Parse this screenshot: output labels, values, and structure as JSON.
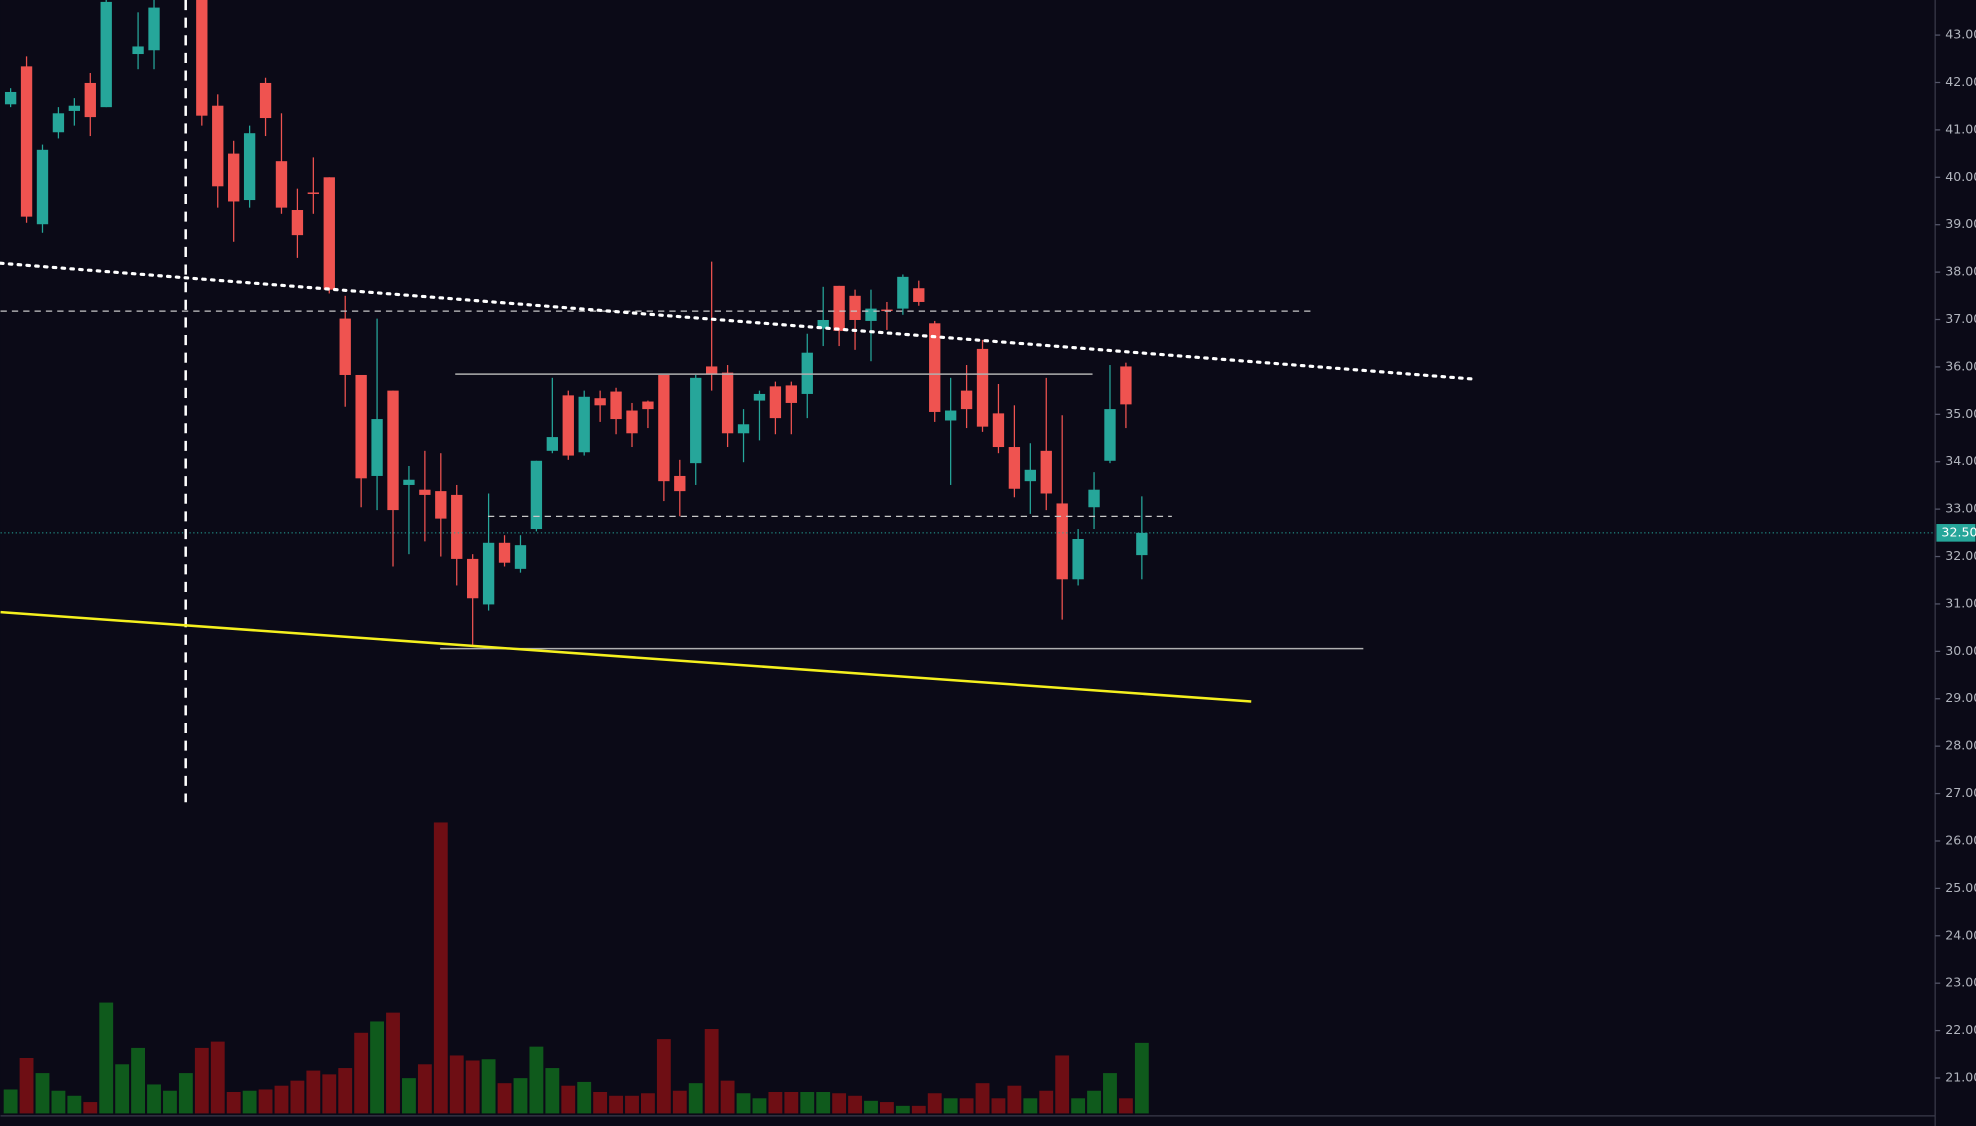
{
  "chart_data": {
    "type": "candlestick",
    "up_color": "#26a69a",
    "down_color": "#ef5350",
    "volume_up_color": "#0f5a1c",
    "volume_down_color": "#6e0e14",
    "ylim": [
      20.2,
      43.74
    ],
    "yticks": [
      {
        "value": 21,
        "label": "21.00"
      },
      {
        "value": 22,
        "label": "22.00"
      },
      {
        "value": 23,
        "label": "23.00"
      },
      {
        "value": 24,
        "label": "24.00"
      },
      {
        "value": 25,
        "label": "25.00"
      },
      {
        "value": 26,
        "label": "26.00"
      },
      {
        "value": 27,
        "label": "27.00"
      },
      {
        "value": 28,
        "label": "28.00"
      },
      {
        "value": 29,
        "label": "29.00"
      },
      {
        "value": 30,
        "label": "30.00"
      },
      {
        "value": 31,
        "label": "31.00"
      },
      {
        "value": 32,
        "label": "32.00"
      },
      {
        "value": 33,
        "label": "33.00"
      },
      {
        "value": 34,
        "label": "34.00"
      },
      {
        "value": 35,
        "label": "35.00"
      },
      {
        "value": 36,
        "label": "36.00"
      },
      {
        "value": 37,
        "label": "37.00"
      },
      {
        "value": 38,
        "label": "38.00"
      },
      {
        "value": 39,
        "label": "39.00"
      },
      {
        "value": 40,
        "label": "40.00"
      },
      {
        "value": 41,
        "label": "41.00"
      },
      {
        "value": 42,
        "label": "42.00"
      },
      {
        "value": 43,
        "label": "43.00"
      }
    ],
    "last_price": {
      "value": 32.5,
      "label": "32.50"
    },
    "open": [
      41.54,
      42.34,
      39.01,
      40.95,
      41.4,
      41.99,
      41.48,
      null,
      42.6,
      42.68,
      null,
      null,
      43.74,
      41.51,
      40.5,
      39.52,
      41.99,
      40.34,
      39.31,
      39.68,
      40.0,
      37.02,
      35.83,
      33.7,
      35.5,
      33.51,
      33.41,
      33.38,
      33.3,
      31.95,
      30.99,
      32.29,
      31.74,
      32.58,
      34.23,
      35.4,
      34.2,
      35.34,
      35.48,
      35.08,
      35.27,
      35.83,
      33.7,
      33.97,
      36.01,
      35.88,
      34.6,
      35.29,
      35.59,
      35.61,
      35.43,
      36.81,
      37.71,
      37.5,
      36.97,
      37.21,
      37.23,
      37.66,
      36.92,
      34.87,
      35.5,
      36.38,
      35.02,
      34.31,
      33.59,
      34.23,
      33.12,
      31.52,
      33.04,
      34.02,
      36.01,
      32.03
    ],
    "high": [
      41.88,
      42.55,
      40.69,
      41.48,
      41.67,
      42.2,
      43.74,
      null,
      43.48,
      43.74,
      null,
      null,
      43.74,
      41.75,
      40.77,
      41.09,
      42.1,
      41.35,
      39.76,
      40.42,
      40.0,
      37.5,
      35.83,
      37.02,
      35.5,
      33.91,
      34.23,
      34.18,
      33.51,
      32.05,
      33.33,
      32.45,
      32.45,
      34.02,
      35.77,
      35.5,
      35.5,
      35.5,
      35.56,
      35.24,
      35.29,
      35.83,
      34.04,
      35.83,
      38.22,
      36.04,
      35.11,
      35.5,
      35.69,
      35.69,
      36.7,
      37.69,
      37.71,
      37.63,
      37.63,
      37.37,
      37.95,
      37.82,
      36.97,
      35.77,
      36.04,
      36.57,
      35.64,
      35.19,
      34.39,
      35.77,
      34.98,
      32.58,
      33.78,
      36.04,
      36.09,
      33.27
    ],
    "low": [
      41.48,
      39.04,
      38.83,
      40.82,
      41.09,
      40.87,
      41.48,
      null,
      42.28,
      42.28,
      null,
      null,
      41.09,
      39.36,
      38.64,
      39.36,
      40.87,
      39.23,
      38.3,
      39.23,
      37.55,
      35.16,
      33.04,
      32.98,
      31.79,
      32.05,
      32.32,
      32.0,
      31.39,
      30.14,
      30.86,
      31.79,
      31.66,
      32.53,
      34.18,
      34.04,
      34.13,
      34.84,
      34.58,
      34.31,
      34.71,
      33.17,
      32.85,
      33.51,
      35.5,
      34.31,
      33.99,
      34.45,
      34.58,
      34.58,
      34.92,
      36.44,
      36.44,
      36.36,
      36.12,
      36.78,
      37.1,
      37.29,
      34.84,
      33.51,
      34.71,
      34.63,
      34.18,
      33.25,
      32.9,
      32.98,
      30.67,
      31.39,
      32.58,
      33.97,
      34.71,
      31.52
    ],
    "close": [
      41.8,
      39.17,
      40.58,
      41.35,
      41.51,
      41.27,
      43.7,
      null,
      42.76,
      43.58,
      null,
      null,
      41.3,
      39.81,
      39.49,
      40.93,
      41.25,
      39.36,
      38.78,
      39.66,
      37.63,
      35.83,
      33.65,
      34.9,
      32.98,
      33.62,
      33.3,
      32.8,
      31.95,
      31.12,
      32.29,
      31.87,
      32.24,
      34.02,
      34.52,
      34.13,
      35.37,
      35.19,
      34.9,
      34.6,
      35.11,
      33.59,
      33.38,
      35.77,
      35.85,
      34.6,
      34.79,
      35.43,
      34.92,
      35.24,
      36.3,
      36.99,
      36.76,
      36.99,
      37.23,
      37.18,
      37.9,
      37.37,
      35.05,
      35.08,
      35.11,
      34.74,
      34.31,
      33.43,
      33.83,
      33.33,
      31.52,
      32.37,
      33.41,
      35.11,
      35.21,
      32.5
    ],
    "volume": [
      19,
      44,
      32,
      18,
      14,
      9,
      88,
      39,
      52,
      23,
      18,
      32,
      52,
      57,
      17,
      18,
      19,
      22,
      26,
      34,
      31,
      36,
      64,
      73,
      80,
      28,
      39,
      231,
      46,
      42,
      43,
      24,
      28,
      53,
      36,
      22,
      25,
      17,
      14,
      14,
      16,
      59,
      18,
      24,
      67,
      26,
      16,
      12,
      17,
      17,
      17,
      17,
      16,
      14,
      10,
      9,
      6,
      6,
      16,
      12,
      12,
      24,
      12,
      22,
      12,
      18,
      46,
      12,
      18,
      32,
      12,
      56
    ]
  }
}
